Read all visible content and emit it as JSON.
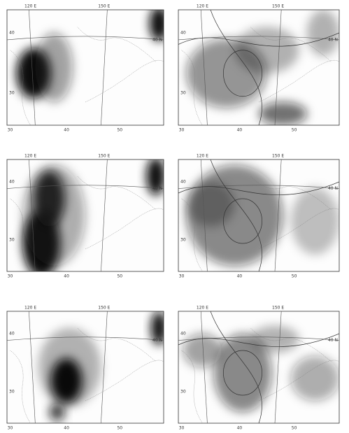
{
  "panels": [
    {
      "top_labels": [
        "120 E",
        "150 E"
      ],
      "left_labels": [
        "40",
        "30"
      ],
      "bottom_labels": [
        "30",
        "40",
        "50"
      ],
      "right_label": "40 N"
    },
    {
      "top_labels": [
        "120 E",
        "150 E"
      ],
      "left_labels": [
        "40",
        "30"
      ],
      "bottom_labels": [
        "30",
        "40",
        "50"
      ],
      "right_label": "40 N"
    },
    {
      "top_labels": [
        "120 E",
        "150 E"
      ],
      "left_labels": [
        "40",
        "30"
      ],
      "bottom_labels": [
        "30",
        "40",
        "50"
      ],
      "right_label": "40 N"
    },
    {
      "top_labels": [
        "120 E",
        "150 E"
      ],
      "left_labels": [
        "40",
        "30"
      ],
      "bottom_labels": [
        "30",
        "40",
        "50"
      ],
      "right_label": "40 N"
    },
    {
      "top_labels": [
        "120 E",
        "150 E"
      ],
      "left_labels": [
        "40",
        "30"
      ],
      "bottom_labels": [
        "30",
        "40",
        "50"
      ],
      "right_label": "40 N"
    },
    {
      "top_labels": [
        "120 E",
        "150 E"
      ],
      "left_labels": [
        "40",
        "30"
      ],
      "bottom_labels": [
        "30",
        "40",
        "50"
      ],
      "right_label": "40 N"
    }
  ]
}
